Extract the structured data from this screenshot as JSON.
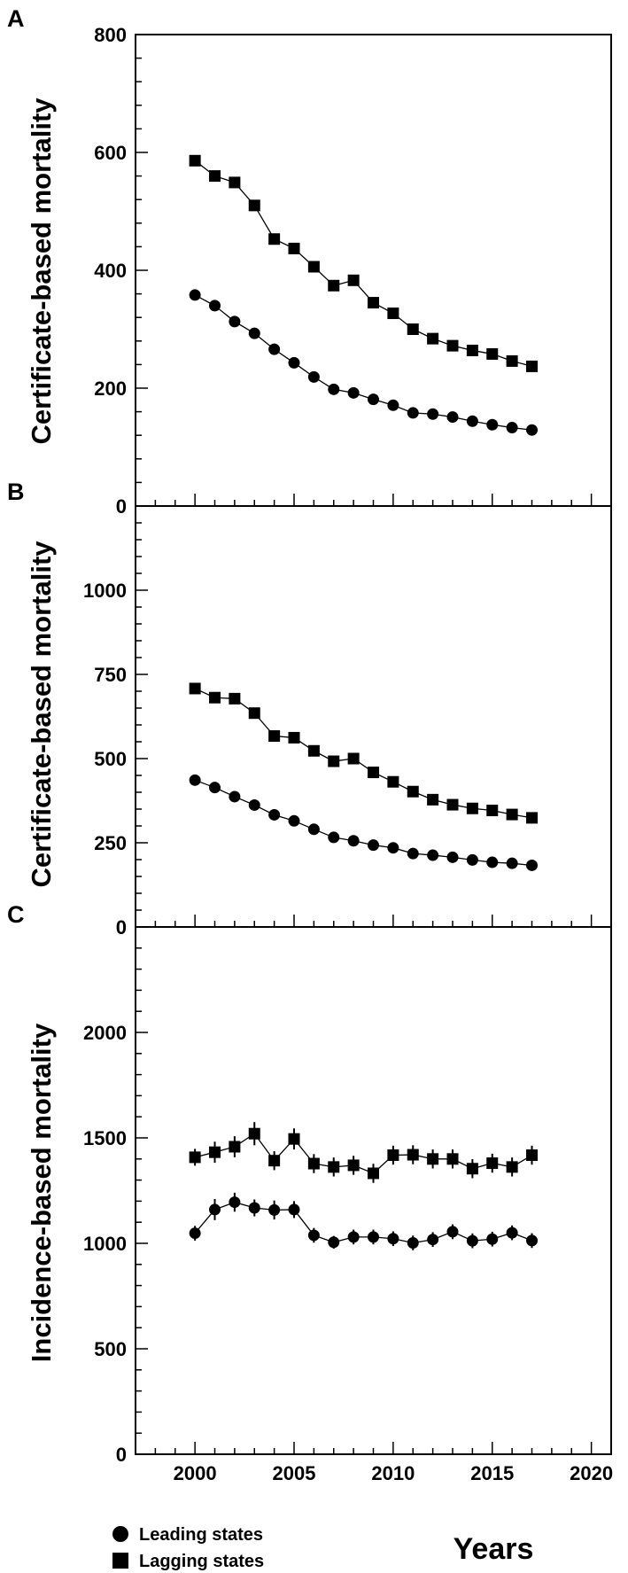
{
  "chart_data": [
    {
      "panel": "A",
      "type": "line",
      "ylabel": "Certificate-based mortality",
      "xlim": [
        1997,
        2021
      ],
      "ylim": [
        0,
        800
      ],
      "x": [
        2000,
        2001,
        2002,
        2003,
        2004,
        2005,
        2006,
        2007,
        2008,
        2009,
        2010,
        2011,
        2012,
        2013,
        2014,
        2015,
        2016,
        2017
      ],
      "yticks": [
        0,
        200,
        400,
        600,
        800
      ],
      "series": [
        {
          "name": "Leading states",
          "marker": "circle",
          "values": [
            358,
            340,
            313,
            293,
            266,
            243,
            219,
            198,
            192,
            181,
            171,
            158,
            156,
            151,
            144,
            138,
            133,
            129
          ]
        },
        {
          "name": "Lagging states",
          "marker": "square",
          "values": [
            586,
            560,
            549,
            510,
            453,
            437,
            406,
            374,
            383,
            345,
            327,
            300,
            284,
            272,
            264,
            258,
            246,
            237
          ]
        }
      ]
    },
    {
      "panel": "B",
      "type": "line",
      "ylabel": "Certificate-based mortality",
      "xlim": [
        1997,
        2021
      ],
      "ylim": [
        0,
        1250
      ],
      "x": [
        2000,
        2001,
        2002,
        2003,
        2004,
        2005,
        2006,
        2007,
        2008,
        2009,
        2010,
        2011,
        2012,
        2013,
        2014,
        2015,
        2016,
        2017
      ],
      "yticks": [
        0,
        250,
        500,
        750,
        1000
      ],
      "series": [
        {
          "name": "Leading states",
          "marker": "circle",
          "values": [
            436,
            414,
            387,
            362,
            333,
            315,
            290,
            266,
            256,
            243,
            235,
            218,
            213,
            207,
            199,
            192,
            189,
            183
          ]
        },
        {
          "name": "Lagging states",
          "marker": "square",
          "values": [
            708,
            681,
            678,
            635,
            567,
            562,
            523,
            492,
            500,
            459,
            431,
            402,
            378,
            363,
            352,
            346,
            334,
            324
          ]
        }
      ]
    },
    {
      "panel": "C",
      "type": "line",
      "ylabel": "Incidence-based mortality",
      "xlim": [
        1997,
        2021
      ],
      "ylim": [
        0,
        2500
      ],
      "x": [
        2000,
        2001,
        2002,
        2003,
        2004,
        2005,
        2006,
        2007,
        2008,
        2009,
        2010,
        2011,
        2012,
        2013,
        2014,
        2015,
        2016,
        2017
      ],
      "xticks": [
        2000,
        2005,
        2010,
        2015,
        2020
      ],
      "yticks": [
        0,
        500,
        1000,
        1500,
        2000
      ],
      "series": [
        {
          "name": "Leading states",
          "marker": "circle",
          "values": [
            1048,
            1160,
            1195,
            1168,
            1158,
            1160,
            1038,
            1005,
            1030,
            1030,
            1022,
            1002,
            1018,
            1055,
            1012,
            1020,
            1050,
            1013
          ],
          "errors": [
            35,
            50,
            45,
            40,
            45,
            40,
            35,
            30,
            35,
            35,
            35,
            35,
            35,
            35,
            35,
            35,
            35,
            35
          ]
        },
        {
          "name": "Lagging states",
          "marker": "square",
          "values": [
            1408,
            1432,
            1458,
            1520,
            1392,
            1495,
            1378,
            1362,
            1370,
            1332,
            1418,
            1420,
            1400,
            1400,
            1354,
            1380,
            1362,
            1418
          ],
          "errors": [
            40,
            50,
            50,
            55,
            45,
            50,
            45,
            45,
            45,
            45,
            45,
            45,
            45,
            45,
            45,
            45,
            45,
            45
          ]
        }
      ]
    }
  ],
  "xlabel": "Years",
  "legend": {
    "placement": "bottom-left",
    "items": [
      {
        "label": "Leading states",
        "marker": "circle"
      },
      {
        "label": "Lagging states",
        "marker": "square"
      }
    ]
  }
}
